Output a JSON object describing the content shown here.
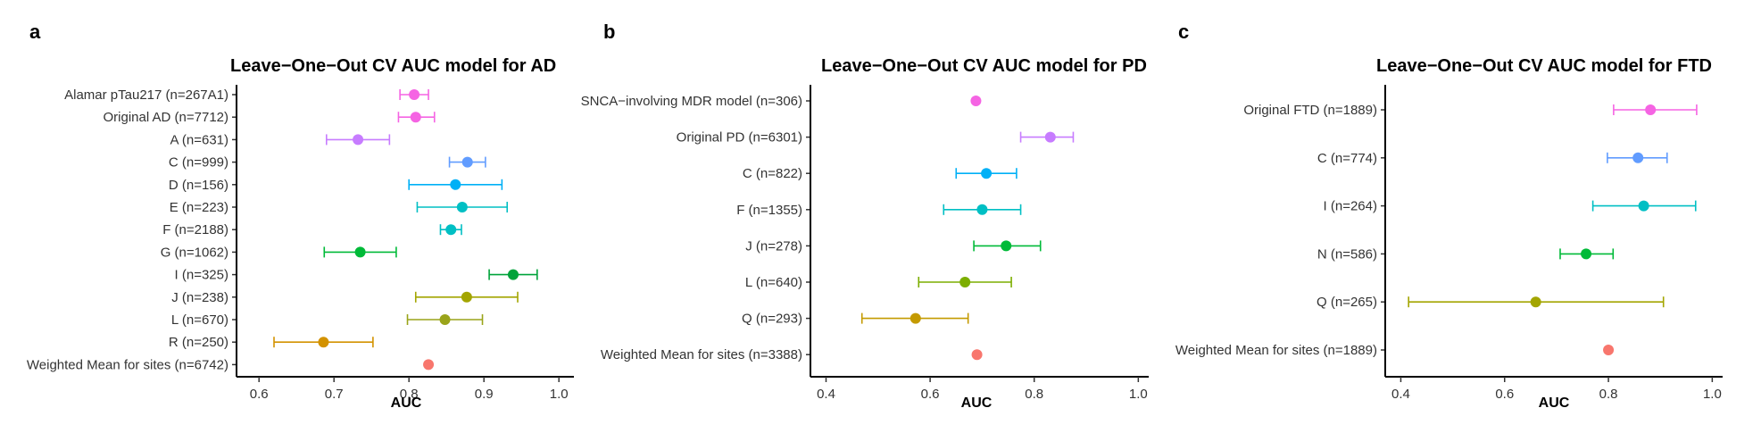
{
  "chart_data": [
    {
      "panel": "a",
      "type": "scatter",
      "title": "Leave−One−Out CV AUC model for AD",
      "xlabel": "AUC",
      "ylabel": "",
      "xlim": [
        0.57,
        1.02
      ],
      "xticks": [
        "0.6",
        "0.7",
        "0.8",
        "0.9",
        "1.0"
      ],
      "grid": false,
      "legend": "none",
      "points": [
        {
          "label": "Alamar pTau217 (n=267A1)",
          "auc": 0.807,
          "lo": 0.788,
          "hi": 0.826,
          "color": "#F564E3"
        },
        {
          "label": "Original AD (n=7712)",
          "auc": 0.809,
          "lo": 0.786,
          "hi": 0.834,
          "color": "#F564E3"
        },
        {
          "label": "A (n=631)",
          "auc": 0.732,
          "lo": 0.69,
          "hi": 0.774,
          "color": "#C77CFF"
        },
        {
          "label": "C (n=999)",
          "auc": 0.878,
          "lo": 0.854,
          "hi": 0.902,
          "color": "#619CFF"
        },
        {
          "label": "D (n=156)",
          "auc": 0.862,
          "lo": 0.8,
          "hi": 0.924,
          "color": "#00B0F6"
        },
        {
          "label": "E (n=223)",
          "auc": 0.871,
          "lo": 0.811,
          "hi": 0.931,
          "color": "#00BFC4"
        },
        {
          "label": "F (n=2188)",
          "auc": 0.856,
          "lo": 0.842,
          "hi": 0.87,
          "color": "#00BFC4"
        },
        {
          "label": "G (n=1062)",
          "auc": 0.735,
          "lo": 0.687,
          "hi": 0.783,
          "color": "#00BA38"
        },
        {
          "label": "I (n=325)",
          "auc": 0.939,
          "lo": 0.907,
          "hi": 0.971,
          "color": "#00A33A"
        },
        {
          "label": "J (n=238)",
          "auc": 0.877,
          "lo": 0.809,
          "hi": 0.945,
          "color": "#A3A500"
        },
        {
          "label": "L (n=670)",
          "auc": 0.848,
          "lo": 0.798,
          "hi": 0.898,
          "color": "#9AA41A"
        },
        {
          "label": "R (n=250)",
          "auc": 0.686,
          "lo": 0.62,
          "hi": 0.752,
          "color": "#D39200"
        },
        {
          "label": "Weighted Mean for sites (n=6742)",
          "auc": 0.826,
          "lo": null,
          "hi": null,
          "color": "#F8766D"
        }
      ]
    },
    {
      "panel": "b",
      "type": "scatter",
      "title": "Leave−One−Out CV AUC model for PD",
      "xlabel": "AUC",
      "ylabel": "",
      "xlim": [
        0.37,
        1.02
      ],
      "xticks": [
        "0.4",
        "0.6",
        "0.8",
        "1.0"
      ],
      "grid": false,
      "legend": "none",
      "points": [
        {
          "label": "SNCA−involving MDR model (n=306)",
          "auc": 0.688,
          "lo": null,
          "hi": null,
          "color": "#F564E3"
        },
        {
          "label": "Original PD (n=6301)",
          "auc": 0.831,
          "lo": 0.774,
          "hi": 0.875,
          "color": "#C77CFF"
        },
        {
          "label": "C (n=822)",
          "auc": 0.708,
          "lo": 0.65,
          "hi": 0.766,
          "color": "#00B0F6"
        },
        {
          "label": "F (n=1355)",
          "auc": 0.7,
          "lo": 0.626,
          "hi": 0.774,
          "color": "#00BFC4"
        },
        {
          "label": "J (n=278)",
          "auc": 0.746,
          "lo": 0.684,
          "hi": 0.812,
          "color": "#00BA38"
        },
        {
          "label": "L (n=640)",
          "auc": 0.667,
          "lo": 0.578,
          "hi": 0.756,
          "color": "#7CAE00"
        },
        {
          "label": "Q (n=293)",
          "auc": 0.572,
          "lo": 0.469,
          "hi": 0.673,
          "color": "#C49A00"
        },
        {
          "label": "Weighted Mean for sites (n=3388)",
          "auc": 0.69,
          "lo": null,
          "hi": null,
          "color": "#F8766D"
        }
      ]
    },
    {
      "panel": "c",
      "type": "scatter",
      "title": "Leave−One−Out CV AUC model for FTD",
      "xlabel": "AUC",
      "ylabel": "",
      "xlim": [
        0.37,
        1.02
      ],
      "xticks": [
        "0.4",
        "0.6",
        "0.8",
        "1.0"
      ],
      "grid": false,
      "legend": "none",
      "points": [
        {
          "label": "Original FTD (n=1889)",
          "auc": 0.881,
          "lo": 0.81,
          "hi": 0.97,
          "color": "#F564E3"
        },
        {
          "label": "C (n=774)",
          "auc": 0.857,
          "lo": 0.798,
          "hi": 0.913,
          "color": "#619CFF"
        },
        {
          "label": "I (n=264)",
          "auc": 0.868,
          "lo": 0.77,
          "hi": 0.968,
          "color": "#00BFC4"
        },
        {
          "label": "N (n=586)",
          "auc": 0.757,
          "lo": 0.707,
          "hi": 0.809,
          "color": "#00BA38"
        },
        {
          "label": "Q (n=265)",
          "auc": 0.66,
          "lo": 0.415,
          "hi": 0.906,
          "color": "#A3A500"
        },
        {
          "label": "Weighted Mean for sites (n=1889)",
          "auc": 0.8,
          "lo": null,
          "hi": null,
          "color": "#F8766D"
        }
      ]
    }
  ]
}
